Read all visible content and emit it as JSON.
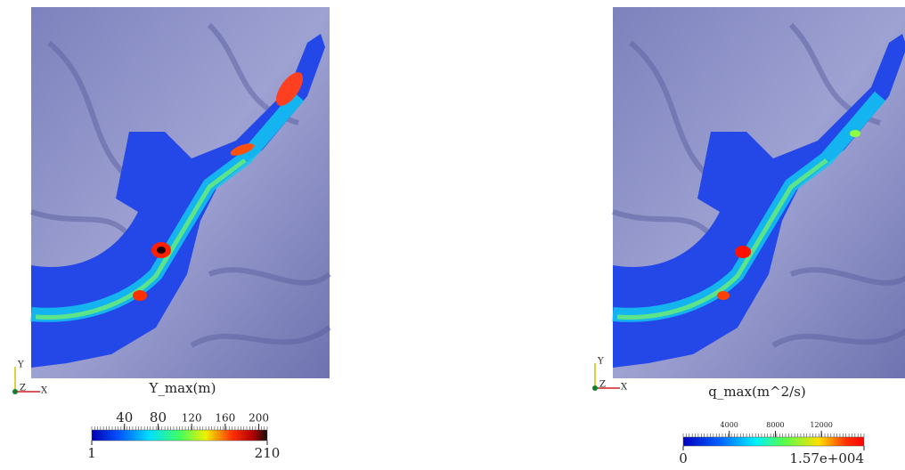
{
  "panels": [
    {
      "title": "Y_max(m)",
      "axes": {
        "y": "Y",
        "z": "Z",
        "x": "X"
      },
      "colorbar": {
        "min": 1,
        "max": 210,
        "ticks": [
          40,
          80,
          120,
          160,
          200
        ]
      }
    },
    {
      "title": "q_max(m^2/s)",
      "axes": {
        "y": "Y",
        "z": "Z",
        "x": "X"
      },
      "colorbar": {
        "min": 0,
        "max": {
          "value": 15700,
          "label": "1.57e+004"
        },
        "ticks": [
          4000,
          8000,
          12000
        ]
      }
    }
  ]
}
